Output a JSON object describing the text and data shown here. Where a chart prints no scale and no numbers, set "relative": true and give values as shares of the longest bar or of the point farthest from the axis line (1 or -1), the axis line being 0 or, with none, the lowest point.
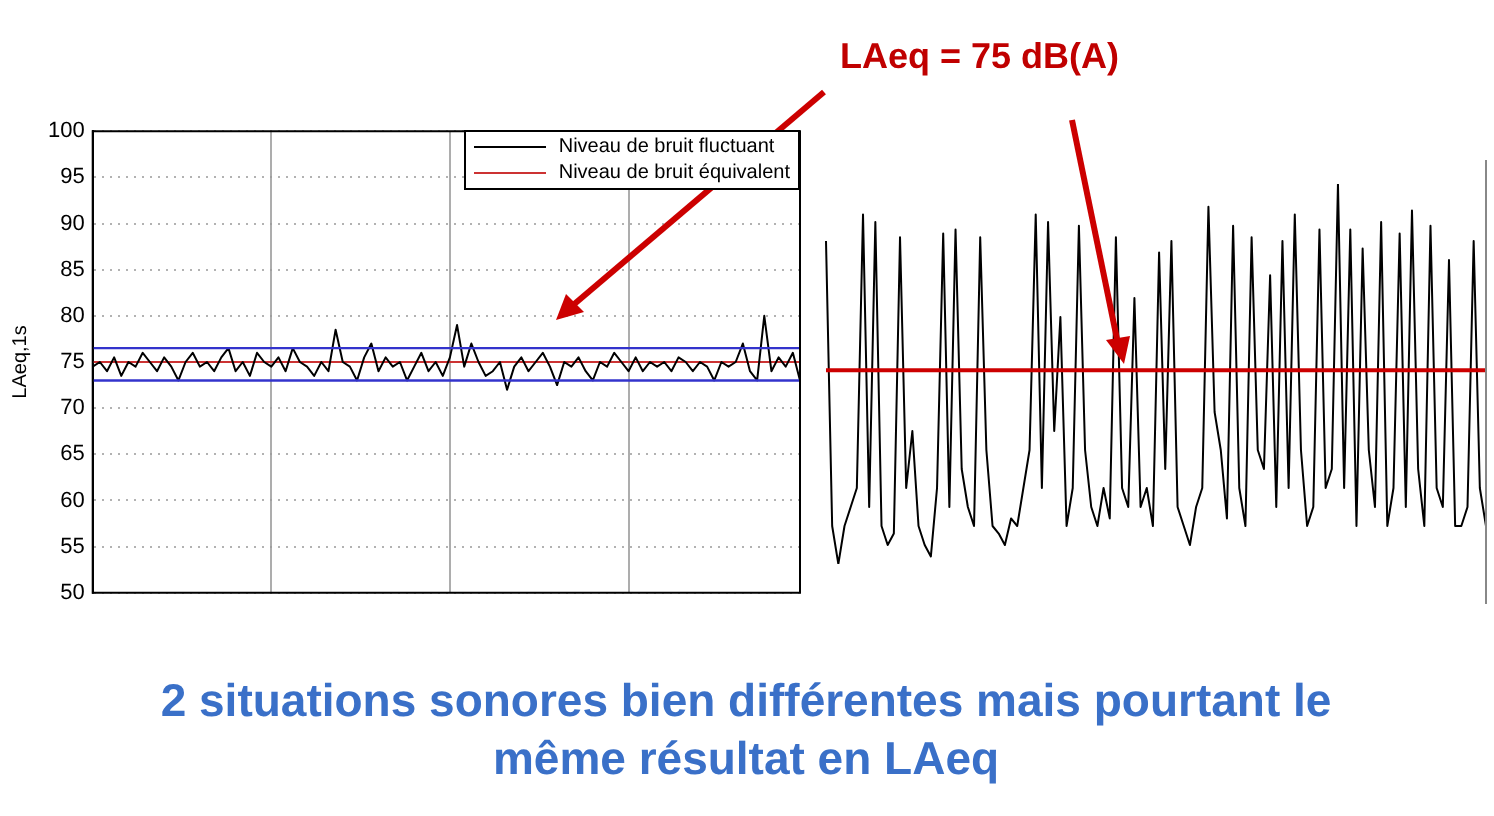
{
  "chart_data": [
    {
      "type": "line",
      "ylabel": "LAeq,1s",
      "ylim": [
        50,
        100
      ],
      "yticks": [
        50,
        55,
        60,
        65,
        70,
        75,
        80,
        85,
        90,
        95,
        100
      ],
      "grid": true,
      "legend": "top right",
      "tick_labels": "y",
      "marker": "none",
      "line_style": "solid",
      "categories": [
        null,
        null,
        null,
        null,
        null,
        null,
        null,
        null,
        null,
        null,
        null,
        null,
        null,
        null,
        null,
        null,
        null,
        null,
        null,
        null,
        null,
        null,
        null,
        null,
        null,
        null,
        null,
        null,
        null,
        null,
        null,
        null,
        null,
        null,
        null,
        null,
        null,
        null,
        null,
        null,
        null,
        null,
        null,
        null,
        null,
        null,
        null,
        null,
        null,
        null,
        null,
        null,
        null,
        null,
        null,
        null,
        null,
        null,
        null,
        null,
        null,
        null,
        null,
        null,
        null,
        null,
        null,
        null,
        null,
        null,
        null,
        null,
        null,
        null,
        null,
        null,
        null,
        null,
        null,
        null,
        null,
        null,
        null,
        null,
        null,
        null,
        null,
        null,
        null,
        null,
        null,
        null,
        null,
        null,
        null,
        null,
        null,
        null,
        null,
        null
      ],
      "series": [
        {
          "name": "Niveau de bruit fluctuant",
          "color": "#000000",
          "values": [
            74.5,
            75,
            74,
            75.5,
            73.5,
            75,
            74.5,
            76,
            75,
            74,
            75.5,
            74.5,
            73,
            75,
            76,
            74.5,
            75,
            74,
            75.5,
            76.5,
            74,
            75,
            73.5,
            76,
            75,
            74.5,
            75.5,
            74,
            76.5,
            75,
            74.5,
            73.5,
            75,
            74,
            78.5,
            75,
            74.5,
            73,
            75.5,
            77,
            74,
            75.5,
            74.5,
            75,
            73,
            74.5,
            76,
            74,
            75,
            73.5,
            75.5,
            79,
            74.5,
            77,
            75,
            73.5,
            74,
            75,
            72,
            74.5,
            75.5,
            74,
            75,
            76,
            74.5,
            72.5,
            75,
            74.5,
            75.5,
            74,
            73,
            75,
            74.5,
            76,
            75,
            74,
            75.5,
            74,
            75,
            74.5,
            75,
            74,
            75.5,
            75,
            74,
            75,
            74.5,
            73,
            75,
            74.5,
            75,
            77,
            74,
            73,
            80,
            74,
            75.5,
            74.5,
            76,
            73
          ]
        },
        {
          "name": "Niveau de bruit équivalent",
          "color": "#cc3333",
          "values": [
            75,
            75,
            75,
            75,
            75,
            75,
            75,
            75,
            75,
            75,
            75,
            75,
            75,
            75,
            75,
            75,
            75,
            75,
            75,
            75,
            75,
            75,
            75,
            75,
            75,
            75,
            75,
            75,
            75,
            75,
            75,
            75,
            75,
            75,
            75,
            75,
            75,
            75,
            75,
            75,
            75,
            75,
            75,
            75,
            75,
            75,
            75,
            75,
            75,
            75,
            75,
            75,
            75,
            75,
            75,
            75,
            75,
            75,
            75,
            75,
            75,
            75,
            75,
            75,
            75,
            75,
            75,
            75,
            75,
            75,
            75,
            75,
            75,
            75,
            75,
            75,
            75,
            75,
            75,
            75,
            75,
            75,
            75,
            75,
            75,
            75,
            75,
            75,
            75,
            75,
            75,
            75,
            75,
            75,
            75,
            75,
            75,
            75,
            75,
            75
          ]
        }
      ],
      "ref_lines": [
        {
          "axis": "y",
          "value": 76.5,
          "color": "#3333cc"
        },
        {
          "axis": "y",
          "value": 73,
          "color": "#3333cc"
        }
      ],
      "annotations": [
        "2 situations sonores bien différentes mais pourtant le même résultat en LAeq"
      ]
    },
    {
      "type": "line",
      "relative": true,
      "marker": "none",
      "tick_labels": false,
      "categories": [
        null,
        null,
        null,
        null,
        null,
        null,
        null,
        null,
        null,
        null,
        null,
        null,
        null,
        null,
        null,
        null,
        null,
        null,
        null,
        null,
        null,
        null,
        null,
        null,
        null,
        null,
        null,
        null,
        null,
        null,
        null,
        null,
        null,
        null,
        null,
        null,
        null,
        null,
        null,
        null,
        null,
        null,
        null,
        null,
        null,
        null,
        null,
        null,
        null,
        null,
        null,
        null,
        null,
        null,
        null,
        null,
        null,
        null,
        null,
        null,
        null,
        null,
        null,
        null,
        null,
        null,
        null,
        null,
        null,
        null,
        null,
        null,
        null,
        null,
        null,
        null,
        null,
        null,
        null,
        null,
        null,
        null,
        null,
        null,
        null,
        null,
        null,
        null,
        null,
        null,
        null,
        null,
        null,
        null,
        null,
        null,
        null,
        null,
        null,
        null,
        null,
        null,
        null,
        null,
        null,
        null,
        null,
        null
      ],
      "series": [
        {
          "color": "#000000",
          "values": [
            0.85,
            0.1,
            0,
            0.1,
            0.15,
            0.2,
            0.92,
            0.15,
            0.9,
            0.1,
            0.05,
            0.08,
            0.86,
            0.2,
            0.35,
            0.1,
            0.05,
            0.02,
            0.2,
            0.87,
            0.15,
            0.88,
            0.25,
            0.15,
            0.1,
            0.86,
            0.3,
            0.1,
            0.08,
            0.05,
            0.12,
            0.1,
            0.2,
            0.3,
            0.92,
            0.2,
            0.9,
            0.35,
            0.65,
            0.1,
            0.2,
            0.89,
            0.3,
            0.15,
            0.1,
            0.2,
            0.12,
            0.86,
            0.2,
            0.15,
            0.7,
            0.15,
            0.2,
            0.1,
            0.82,
            0.25,
            0.85,
            0.15,
            0.1,
            0.05,
            0.15,
            0.2,
            0.94,
            0.4,
            0.3,
            0.12,
            0.89,
            0.2,
            0.1,
            0.86,
            0.3,
            0.25,
            0.76,
            0.15,
            0.85,
            0.2,
            0.92,
            0.3,
            0.1,
            0.15,
            0.88,
            0.2,
            0.25,
            1,
            0.2,
            0.88,
            0.1,
            0.83,
            0.3,
            0.15,
            0.9,
            0.1,
            0.2,
            0.87,
            0.15,
            0.93,
            0.25,
            0.1,
            0.89,
            0.2,
            0.15,
            0.8,
            0.1,
            0.1,
            0.15,
            0.85,
            0.2,
            0.1
          ]
        }
      ],
      "ref_lines": [
        {
          "axis": "y",
          "value": 0.51,
          "color": "#cc0000"
        }
      ],
      "annotations": [
        "LAeq = 75 dB(A)"
      ]
    }
  ]
}
